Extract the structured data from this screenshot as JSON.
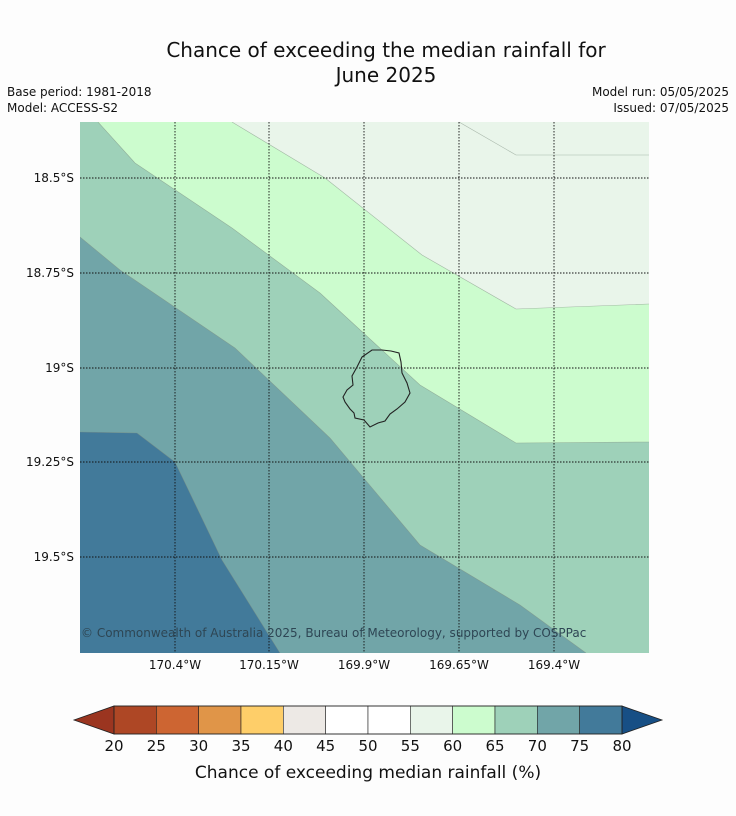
{
  "title_line1": "Chance of exceeding the median rainfall for",
  "title_line2": "June 2025",
  "base_period": "Base period: 1981-2018",
  "model": "Model: ACCESS-S2",
  "model_run": "Model run: 05/05/2025",
  "issued": "Issued: 07/05/2025",
  "credit": "© Commonwealth of Australia 2025, Bureau of Meteorology, supported by COSPPac",
  "lat_labels": [
    "18.5°S",
    "18.75°S",
    "19°S",
    "19.25°S",
    "19.5°S"
  ],
  "lon_labels": [
    "170.4°W",
    "170.15°W",
    "169.9°W",
    "169.65°W",
    "169.4°W"
  ],
  "colorbar": {
    "title": "Chance of exceeding median rainfall (%)",
    "ticks": [
      "20",
      "25",
      "30",
      "35",
      "40",
      "45",
      "50",
      "55",
      "60",
      "65",
      "70",
      "75",
      "80"
    ],
    "colors": [
      "#ae4725",
      "#cd6532",
      "#e09548",
      "#fece69",
      "#ede9e5",
      "#ffffff",
      "#ffffff",
      "#e9f5ea",
      "#ccfcce",
      "#9ed1b9",
      "#71a5a8",
      "#427a9a"
    ],
    "under_color": "#9b3520",
    "over_color": "#174f85"
  },
  "colors": {
    "band_55_60": "#e9f5ea",
    "band_60_65": "#ccfcce",
    "band_65_70": "#9ed1b9",
    "band_70_75": "#71a5a8",
    "band_75_80": "#427a9a"
  }
}
